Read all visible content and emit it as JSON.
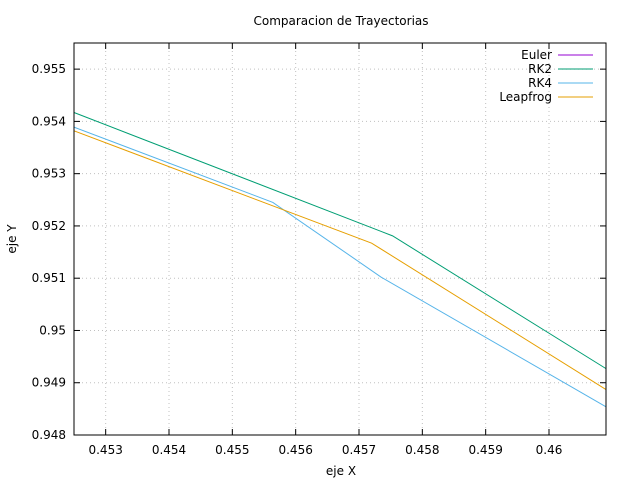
{
  "chart_data": {
    "type": "line",
    "title": "Comparacion de Trayectorias",
    "xlabel": "eje X",
    "ylabel": "eje Y",
    "xlim": [
      0.4525,
      0.4609
    ],
    "ylim": [
      0.948,
      0.9555
    ],
    "x_ticks": [
      0.453,
      0.454,
      0.455,
      0.456,
      0.457,
      0.458,
      0.459,
      0.46
    ],
    "x_tick_labels": [
      "0.453",
      "0.454",
      "0.455",
      "0.456",
      "0.457",
      "0.458",
      "0.459",
      "0.46"
    ],
    "y_ticks": [
      0.948,
      0.949,
      0.95,
      0.951,
      0.952,
      0.953,
      0.954,
      0.955
    ],
    "y_tick_labels": [
      "0.948",
      "0.949",
      "0.95",
      "0.951",
      "0.952",
      "0.953",
      "0.954",
      "0.955"
    ],
    "grid": true,
    "legend_position": "top-right",
    "series": [
      {
        "name": "Euler",
        "color": "#9400d3",
        "points": []
      },
      {
        "name": "RK2",
        "color": "#009e73",
        "points": [
          [
            0.4525,
            0.95417
          ],
          [
            0.45753,
            0.95181
          ],
          [
            0.4609,
            0.94927
          ]
        ]
      },
      {
        "name": "RK4",
        "color": "#56b4e9",
        "points": [
          [
            0.4525,
            0.95389
          ],
          [
            0.45564,
            0.95245
          ],
          [
            0.45735,
            0.95102
          ],
          [
            0.4609,
            0.94854
          ]
        ]
      },
      {
        "name": "Leapfrog",
        "color": "#e69f00",
        "points": [
          [
            0.4525,
            0.95382
          ],
          [
            0.4572,
            0.95167
          ],
          [
            0.4609,
            0.94887
          ]
        ]
      }
    ]
  }
}
